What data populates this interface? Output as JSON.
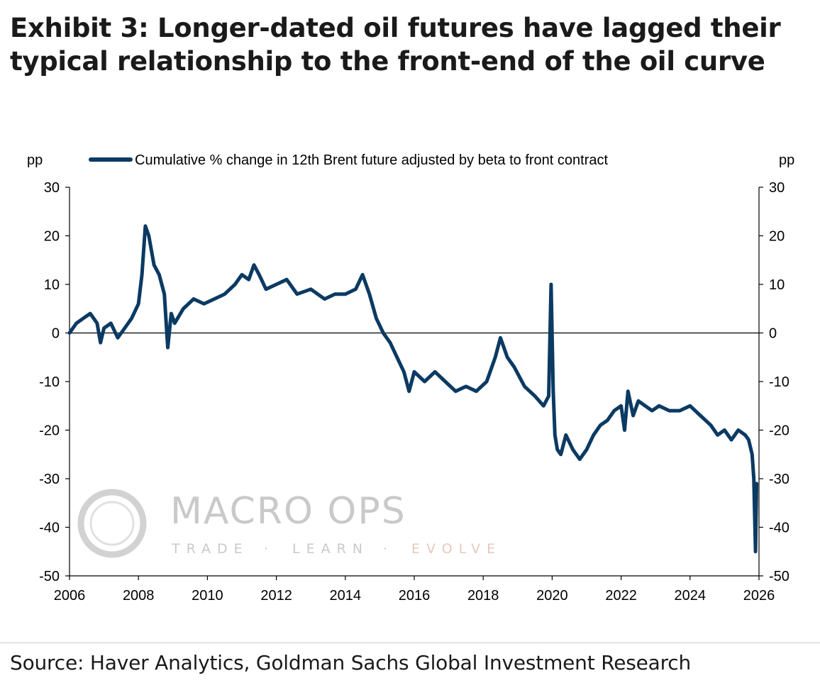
{
  "title": "Exhibit 3: Longer-dated oil futures have lagged their typical relationship to the front-end of the oil curve",
  "source": "Source: Haver Analytics, Goldman Sachs Global Investment Research",
  "watermark": {
    "name": "MACRO OPS",
    "tagline": [
      "TRADE",
      "·",
      "LEARN",
      "·",
      "EVOLVE"
    ]
  },
  "colors": {
    "series": "#0b3a62",
    "axis": "#000000",
    "watermark": "#c9c9c9",
    "watermark_accent": "#e6c9bd"
  },
  "chart_data": {
    "type": "line",
    "y_unit_left": "pp",
    "y_unit_right": "pp",
    "ylim": [
      -50,
      30
    ],
    "yticks": [
      30,
      20,
      10,
      0,
      -10,
      -20,
      -30,
      -40,
      -50
    ],
    "xlim": [
      2006,
      2026
    ],
    "xticks": [
      2006,
      2008,
      2010,
      2012,
      2014,
      2016,
      2018,
      2020,
      2022,
      2024,
      2026
    ],
    "legend_position": "top",
    "series": [
      {
        "name": "Cumulative % change in 12th Brent future adjusted by beta to front contract",
        "x": [
          2006.0,
          2006.2,
          2006.4,
          2006.6,
          2006.8,
          2006.9,
          2007.0,
          2007.2,
          2007.4,
          2007.6,
          2007.8,
          2008.0,
          2008.1,
          2008.2,
          2008.3,
          2008.45,
          2008.6,
          2008.75,
          2008.85,
          2008.95,
          2009.05,
          2009.3,
          2009.6,
          2009.9,
          2010.2,
          2010.5,
          2010.8,
          2011.0,
          2011.2,
          2011.35,
          2011.5,
          2011.7,
          2012.0,
          2012.3,
          2012.6,
          2013.0,
          2013.4,
          2013.7,
          2014.0,
          2014.3,
          2014.5,
          2014.7,
          2014.9,
          2015.1,
          2015.3,
          2015.5,
          2015.7,
          2015.85,
          2016.0,
          2016.3,
          2016.6,
          2016.9,
          2017.2,
          2017.5,
          2017.8,
          2018.1,
          2018.35,
          2018.5,
          2018.7,
          2018.9,
          2019.2,
          2019.5,
          2019.75,
          2019.9,
          2019.97,
          2020.03,
          2020.08,
          2020.15,
          2020.25,
          2020.4,
          2020.6,
          2020.8,
          2021.0,
          2021.2,
          2021.4,
          2021.6,
          2021.8,
          2022.0,
          2022.1,
          2022.2,
          2022.35,
          2022.5,
          2022.7,
          2022.9,
          2023.1,
          2023.4,
          2023.7,
          2024.0,
          2024.3,
          2024.6,
          2024.8,
          2025.0,
          2025.2,
          2025.4,
          2025.6,
          2025.7,
          2025.8,
          2025.85,
          2025.9,
          2025.93
        ],
        "values": [
          0,
          2,
          3,
          4,
          2,
          -2,
          1,
          2,
          -1,
          1,
          3,
          6,
          12,
          22,
          20,
          14,
          12,
          8,
          -3,
          4,
          2,
          5,
          7,
          6,
          7,
          8,
          10,
          12,
          11,
          14,
          12,
          9,
          10,
          11,
          8,
          9,
          7,
          8,
          8,
          9,
          12,
          8,
          3,
          0,
          -2,
          -5,
          -8,
          -12,
          -8,
          -10,
          -8,
          -10,
          -12,
          -11,
          -12,
          -10,
          -5,
          -1,
          -5,
          -7,
          -11,
          -13,
          -15,
          -13,
          10,
          -12,
          -21,
          -24,
          -25,
          -21,
          -24,
          -26,
          -24,
          -21,
          -19,
          -18,
          -16,
          -15,
          -20,
          -12,
          -17,
          -14,
          -15,
          -16,
          -15,
          -16,
          -16,
          -15,
          -17,
          -19,
          -21,
          -20,
          -22,
          -20,
          -21,
          -22,
          -25,
          -30,
          -45,
          -31
        ]
      }
    ]
  }
}
